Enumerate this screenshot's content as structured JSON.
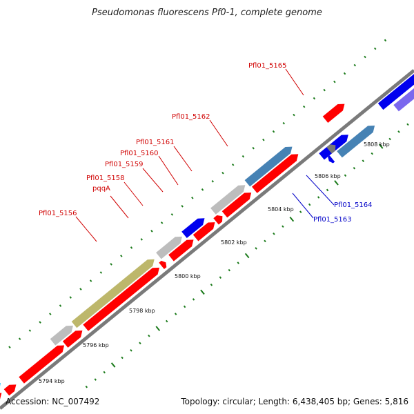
{
  "title": "Pseudomonas fluorescens Pf0-1, complete genome",
  "accession": "Accession: NC_007492",
  "summary": "Topology: circular; Length: 6,438,405 bp; Genes: 5,816",
  "colors": {
    "backbone": "#7a7a7a",
    "tick": "#1a7a1a",
    "label_plus": "#d00000",
    "label_minus": "#0000c8",
    "cds": "#ff0000",
    "gray": "#bdbdbd",
    "olive": "#bdb76b",
    "blue": "#0000ee",
    "steelblue": "#4682b4",
    "slateblue": "#7b68ee",
    "orange": "#ff8c00",
    "cyan": "#00bfff",
    "darkgray": "#777777"
  },
  "kbp_ticks": [
    {
      "label": "5794 kbp"
    },
    {
      "label": "5796 kbp"
    },
    {
      "label": "5798 kbp"
    },
    {
      "label": "5800 kbp"
    },
    {
      "label": "5802 kbp"
    },
    {
      "label": "5804 kbp"
    },
    {
      "label": "5806 kbp"
    },
    {
      "label": "5808 kbp"
    }
  ],
  "gene_labels": [
    {
      "name": "Pfl01_5156",
      "strand": "plus"
    },
    {
      "name": "pqqA",
      "strand": "plus"
    },
    {
      "name": "Pfl01_5158",
      "strand": "plus"
    },
    {
      "name": "Pfl01_5159",
      "strand": "plus"
    },
    {
      "name": "Pfl01_5160",
      "strand": "plus"
    },
    {
      "name": "Pfl01_5161",
      "strand": "plus"
    },
    {
      "name": "Pfl01_5162",
      "strand": "plus"
    },
    {
      "name": "Pfl01_5165",
      "strand": "plus"
    },
    {
      "name": "Pfl01_5164",
      "strand": "minus"
    },
    {
      "name": "Pfl01_5163",
      "strand": "minus"
    }
  ]
}
